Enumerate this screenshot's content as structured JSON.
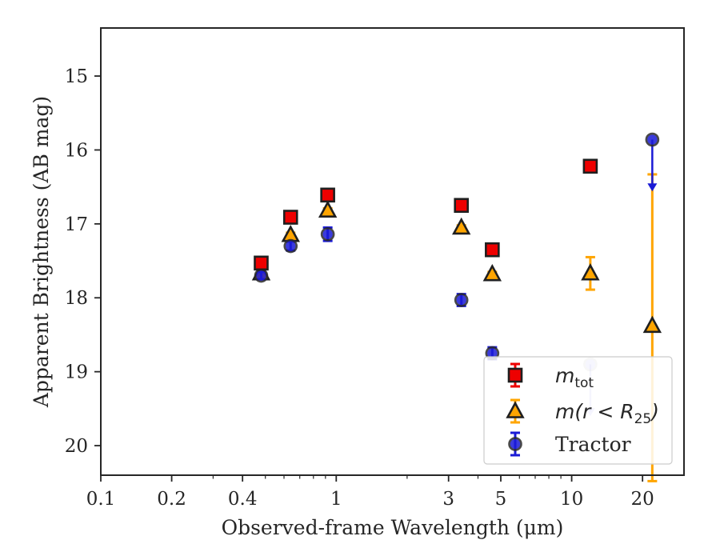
{
  "chart_data": {
    "type": "scatter",
    "title": "",
    "xlabel": "Observed-frame Wavelength (μm)",
    "ylabel": "Apparent Brightness (AB mag)",
    "xscale": "log",
    "xlim": [
      0.1,
      30
    ],
    "ylim": [
      20.4,
      14.35
    ],
    "y_inverted": true,
    "grid": false,
    "legend_position": "lower-right",
    "x_tick_labels": [
      "0.1",
      "0.2",
      "0.4",
      "1",
      "3",
      "5",
      "10",
      "20"
    ],
    "x_ticks": [
      0.1,
      0.2,
      0.4,
      1,
      3,
      5,
      10,
      20
    ],
    "y_tick_labels": [
      "15",
      "16",
      "17",
      "18",
      "19",
      "20"
    ],
    "y_ticks": [
      15,
      16,
      17,
      18,
      19,
      20
    ],
    "legend": [
      {
        "math": "m",
        "sub": "tot",
        "series": "mtot"
      },
      {
        "math": "m(r < R",
        "sub": "25",
        "tail": ")",
        "series": "mr25"
      },
      {
        "text": "Tractor",
        "series": "tractor"
      }
    ],
    "series": [
      {
        "id": "mtot",
        "marker": "square",
        "color": "#ee0000",
        "errcolor": "#ee0000",
        "points": [
          {
            "x": 0.48,
            "y": 17.53,
            "err": 0.07
          },
          {
            "x": 0.64,
            "y": 16.91,
            "err": 0.05
          },
          {
            "x": 0.92,
            "y": 16.61,
            "err": 0.05
          },
          {
            "x": 3.4,
            "y": 16.75,
            "err": 0.07
          },
          {
            "x": 4.6,
            "y": 17.35,
            "err": 0.05
          },
          {
            "x": 12.0,
            "y": 16.22,
            "err": 0.07
          }
        ]
      },
      {
        "id": "mr25",
        "marker": "triangle",
        "color": "#ffa500",
        "errcolor": "#ffa500",
        "points": [
          {
            "x": 0.48,
            "y": 17.67,
            "err": 0.03
          },
          {
            "x": 0.64,
            "y": 17.15,
            "err": 0.03
          },
          {
            "x": 0.92,
            "y": 16.82,
            "err": 0.03
          },
          {
            "x": 3.4,
            "y": 17.05,
            "err": 0.03
          },
          {
            "x": 4.6,
            "y": 17.68,
            "err": 0.03
          },
          {
            "x": 12.0,
            "y": 17.67,
            "err": 0.22
          },
          {
            "x": 22.0,
            "y": 18.38,
            "err_low": 2.1,
            "err_high": 2.05
          }
        ]
      },
      {
        "id": "tractor",
        "marker": "circle",
        "color": "#1a1ad6",
        "errcolor": "#1a1ad6",
        "points": [
          {
            "x": 0.48,
            "y": 17.7,
            "err": 0.05
          },
          {
            "x": 0.64,
            "y": 17.3,
            "err": 0.06
          },
          {
            "x": 0.92,
            "y": 17.14,
            "err": 0.09
          },
          {
            "x": 3.4,
            "y": 18.03,
            "err": 0.08
          },
          {
            "x": 4.6,
            "y": 18.75,
            "err": 0.08
          },
          {
            "x": 12.0,
            "y": 18.9,
            "upper_limit": true,
            "arrow": 0.7,
            "faded": true
          },
          {
            "x": 22.0,
            "y": 15.86,
            "upper_limit": true,
            "arrow": 0.7
          }
        ]
      }
    ]
  }
}
